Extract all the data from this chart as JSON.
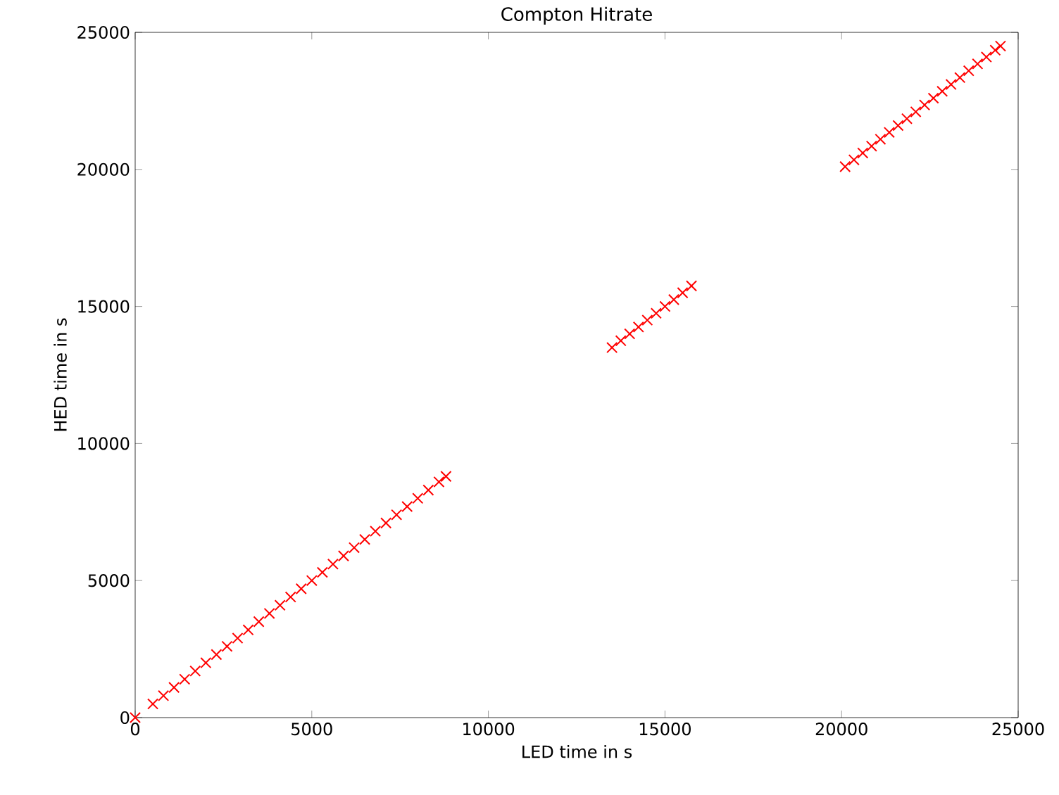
{
  "chart_data": {
    "type": "scatter",
    "title": "Compton Hitrate",
    "xlabel": "LED time in s",
    "ylabel": "HED time in s",
    "series": [
      {
        "color": "#ff0000",
        "x": [
          0,
          500,
          800,
          1100,
          1400,
          1700,
          2000,
          2300,
          2600,
          2900,
          3200,
          3500,
          3800,
          4100,
          4400,
          4700,
          5000,
          5300,
          5600,
          5900,
          6200,
          6500,
          6800,
          7100,
          7400,
          7700,
          8000,
          8300,
          8600,
          8800,
          13500,
          13750,
          14000,
          14250,
          14500,
          14750,
          15000,
          15250,
          15500,
          15750,
          20100,
          20350,
          20600,
          20850,
          21100,
          21350,
          21600,
          21850,
          22100,
          22350,
          22600,
          22850,
          23100,
          23350,
          23600,
          23850,
          24100,
          24350,
          24500
        ],
        "values": [
          0,
          500,
          800,
          1100,
          1400,
          1700,
          2000,
          2300,
          2600,
          2900,
          3200,
          3500,
          3800,
          4100,
          4400,
          4700,
          5000,
          5300,
          5600,
          5900,
          6200,
          6500,
          6800,
          7100,
          7400,
          7700,
          8000,
          8300,
          8600,
          8800,
          13500,
          13750,
          14000,
          14250,
          14500,
          14750,
          15000,
          15250,
          15500,
          15750,
          20100,
          20350,
          20600,
          20850,
          21100,
          21350,
          21600,
          21850,
          22100,
          22350,
          22600,
          22850,
          23100,
          23350,
          23600,
          23850,
          24100,
          24350,
          24500
        ]
      }
    ],
    "marker": "cross",
    "grid": false,
    "xlim": [
      0,
      25000
    ],
    "ylim": [
      0,
      25000
    ],
    "xticks": [
      0,
      5000,
      10000,
      15000,
      20000,
      25000
    ],
    "yticks": [
      0,
      5000,
      10000,
      15000,
      20000,
      25000
    ]
  }
}
